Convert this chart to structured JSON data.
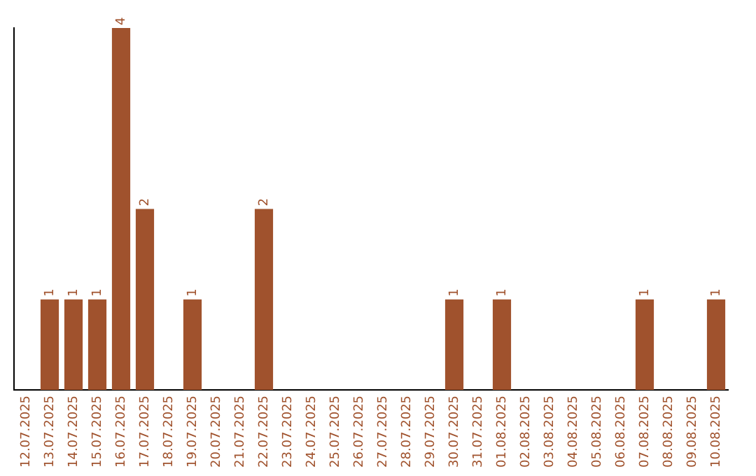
{
  "chart_data": {
    "type": "bar",
    "categories": [
      "12.07.2025",
      "13.07.2025",
      "14.07.2025",
      "15.07.2025",
      "16.07.2025",
      "17.07.2025",
      "18.07.2025",
      "19.07.2025",
      "20.07.2025",
      "21.07.2025",
      "22.07.2025",
      "23.07.2025",
      "24.07.2025",
      "25.07.2025",
      "26.07.2025",
      "27.07.2025",
      "28.07.2025",
      "29.07.2025",
      "30.07.2025",
      "31.07.2025",
      "01.08.2025",
      "02.08.2025",
      "03.08.2025",
      "04.08.2025",
      "05.08.2025",
      "06.08.2025",
      "07.08.2025",
      "08.08.2025",
      "09.08.2025",
      "10.08.2025"
    ],
    "values": [
      0,
      1,
      1,
      1,
      4,
      2,
      0,
      1,
      0,
      0,
      2,
      0,
      0,
      0,
      0,
      0,
      0,
      0,
      1,
      0,
      1,
      0,
      0,
      0,
      0,
      0,
      1,
      0,
      0,
      1
    ],
    "value_labels": [
      null,
      "1",
      "1",
      "1",
      "4",
      "2",
      null,
      "1",
      null,
      null,
      "2",
      null,
      null,
      null,
      null,
      null,
      null,
      null,
      "1",
      null,
      "1",
      null,
      null,
      null,
      null,
      null,
      "1",
      null,
      null,
      "1"
    ],
    "color": "#a0522d",
    "ylim": [
      0,
      4
    ],
    "grid": false,
    "legend": false
  }
}
